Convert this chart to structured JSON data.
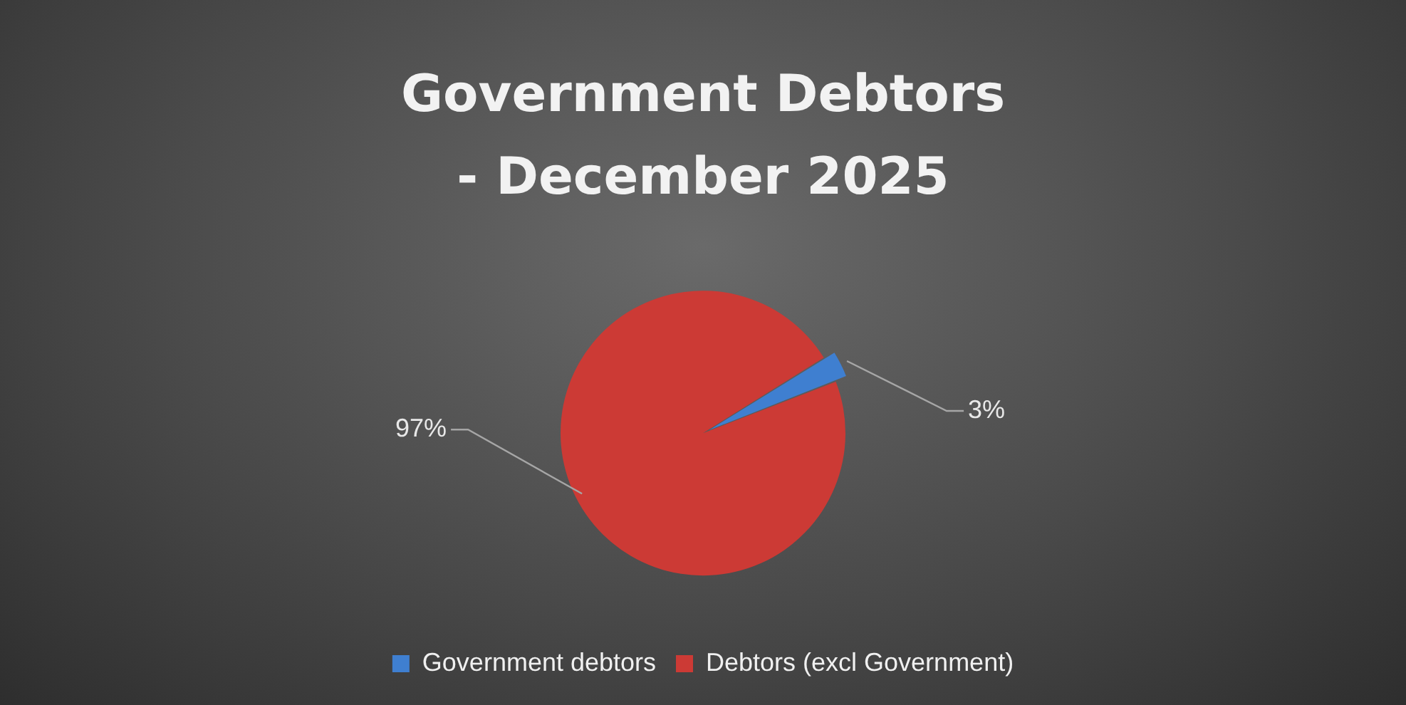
{
  "chart_data": {
    "type": "pie",
    "title": "Government Debtors\n- December 2025",
    "categories": [
      "Government debtors",
      "Debtors (excl Government)"
    ],
    "values": [
      3,
      97
    ],
    "colors": [
      "#3f7fd0",
      "#cc3a35"
    ],
    "value_labels": [
      "3%",
      "97%"
    ],
    "legend": "bottom"
  }
}
